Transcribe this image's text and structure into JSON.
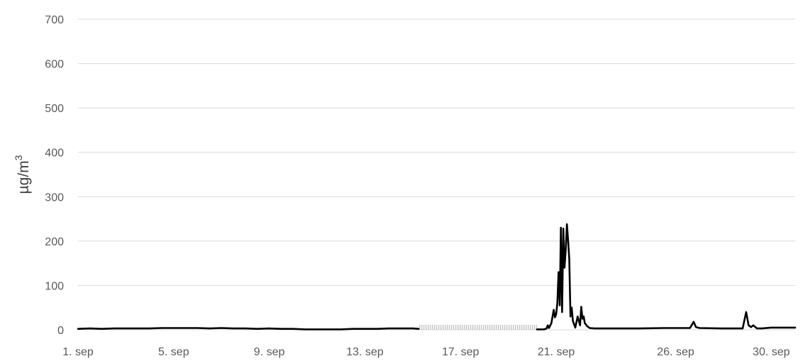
{
  "chart_data": {
    "type": "line",
    "title": "",
    "xlabel": "",
    "ylabel": "µg/m",
    "ylabel_superscript": "3",
    "ylim": [
      0,
      700
    ],
    "yticks": [
      0,
      100,
      200,
      300,
      400,
      500,
      600,
      700
    ],
    "xlim": [
      1,
      31
    ],
    "xticks": [
      {
        "day": 1,
        "label": "1. sep"
      },
      {
        "day": 5,
        "label": "5. sep"
      },
      {
        "day": 9,
        "label": "9. sep"
      },
      {
        "day": 13,
        "label": "13. sep"
      },
      {
        "day": 17,
        "label": "17. sep"
      },
      {
        "day": 21,
        "label": "21. sep"
      },
      {
        "day": 26,
        "label": "26. sep"
      },
      {
        "day": 30,
        "label": "30. sep"
      }
    ],
    "grid": true,
    "legend": "none",
    "line_color": "#000000",
    "missing_data_hatch_color": "#bfbfbf",
    "series": [
      {
        "segments": [
          [
            [
              1.0,
              2
            ],
            [
              1.5,
              3
            ],
            [
              2.0,
              2
            ],
            [
              2.5,
              3
            ],
            [
              3.0,
              3
            ],
            [
              3.5,
              3
            ],
            [
              4.0,
              3
            ],
            [
              4.5,
              4
            ],
            [
              5.0,
              4
            ],
            [
              5.5,
              4
            ],
            [
              6.0,
              4
            ],
            [
              6.5,
              3
            ],
            [
              7.0,
              4
            ],
            [
              7.5,
              3
            ],
            [
              8.0,
              3
            ],
            [
              8.5,
              2
            ],
            [
              9.0,
              3
            ],
            [
              9.5,
              2
            ],
            [
              10.0,
              2
            ],
            [
              10.5,
              1
            ],
            [
              11.0,
              1
            ],
            [
              11.5,
              1
            ],
            [
              12.0,
              1
            ],
            [
              12.5,
              2
            ],
            [
              13.0,
              2
            ],
            [
              13.5,
              2
            ],
            [
              14.0,
              3
            ],
            [
              14.5,
              3
            ],
            [
              15.0,
              3
            ],
            [
              15.25,
              2
            ]
          ],
          [
            [
              20.2,
              1
            ],
            [
              20.5,
              1
            ],
            [
              20.6,
              3
            ],
            [
              20.65,
              10
            ],
            [
              20.7,
              4
            ],
            [
              20.8,
              15
            ],
            [
              20.9,
              45
            ],
            [
              20.95,
              28
            ],
            [
              21.0,
              35
            ],
            [
              21.05,
              60
            ],
            [
              21.1,
              130
            ],
            [
              21.15,
              55
            ],
            [
              21.2,
              230
            ],
            [
              21.25,
              40
            ],
            [
              21.3,
              228
            ],
            [
              21.35,
              140
            ],
            [
              21.4,
              180
            ],
            [
              21.45,
              238
            ],
            [
              21.5,
              200
            ],
            [
              21.55,
              160
            ],
            [
              21.6,
              30
            ],
            [
              21.65,
              50
            ],
            [
              21.7,
              20
            ],
            [
              21.8,
              5
            ],
            [
              21.9,
              30
            ],
            [
              22.0,
              10
            ],
            [
              22.05,
              52
            ],
            [
              22.1,
              25
            ],
            [
              22.15,
              30
            ],
            [
              22.2,
              15
            ],
            [
              22.3,
              8
            ],
            [
              22.4,
              4
            ],
            [
              22.6,
              3
            ],
            [
              23.5,
              3
            ],
            [
              24.5,
              3
            ],
            [
              25.5,
              4
            ],
            [
              26.0,
              4
            ],
            [
              26.6,
              4
            ],
            [
              26.75,
              18
            ],
            [
              26.85,
              6
            ],
            [
              27.0,
              4
            ],
            [
              28.0,
              3
            ],
            [
              28.8,
              3
            ],
            [
              28.95,
              40
            ],
            [
              29.05,
              10
            ],
            [
              29.15,
              6
            ],
            [
              29.25,
              10
            ],
            [
              29.4,
              3
            ],
            [
              29.6,
              3
            ],
            [
              30.0,
              5
            ],
            [
              30.5,
              5
            ],
            [
              31.0,
              5
            ]
          ]
        ]
      }
    ],
    "missing_data_ranges": [
      [
        15.25,
        20.2
      ]
    ]
  }
}
